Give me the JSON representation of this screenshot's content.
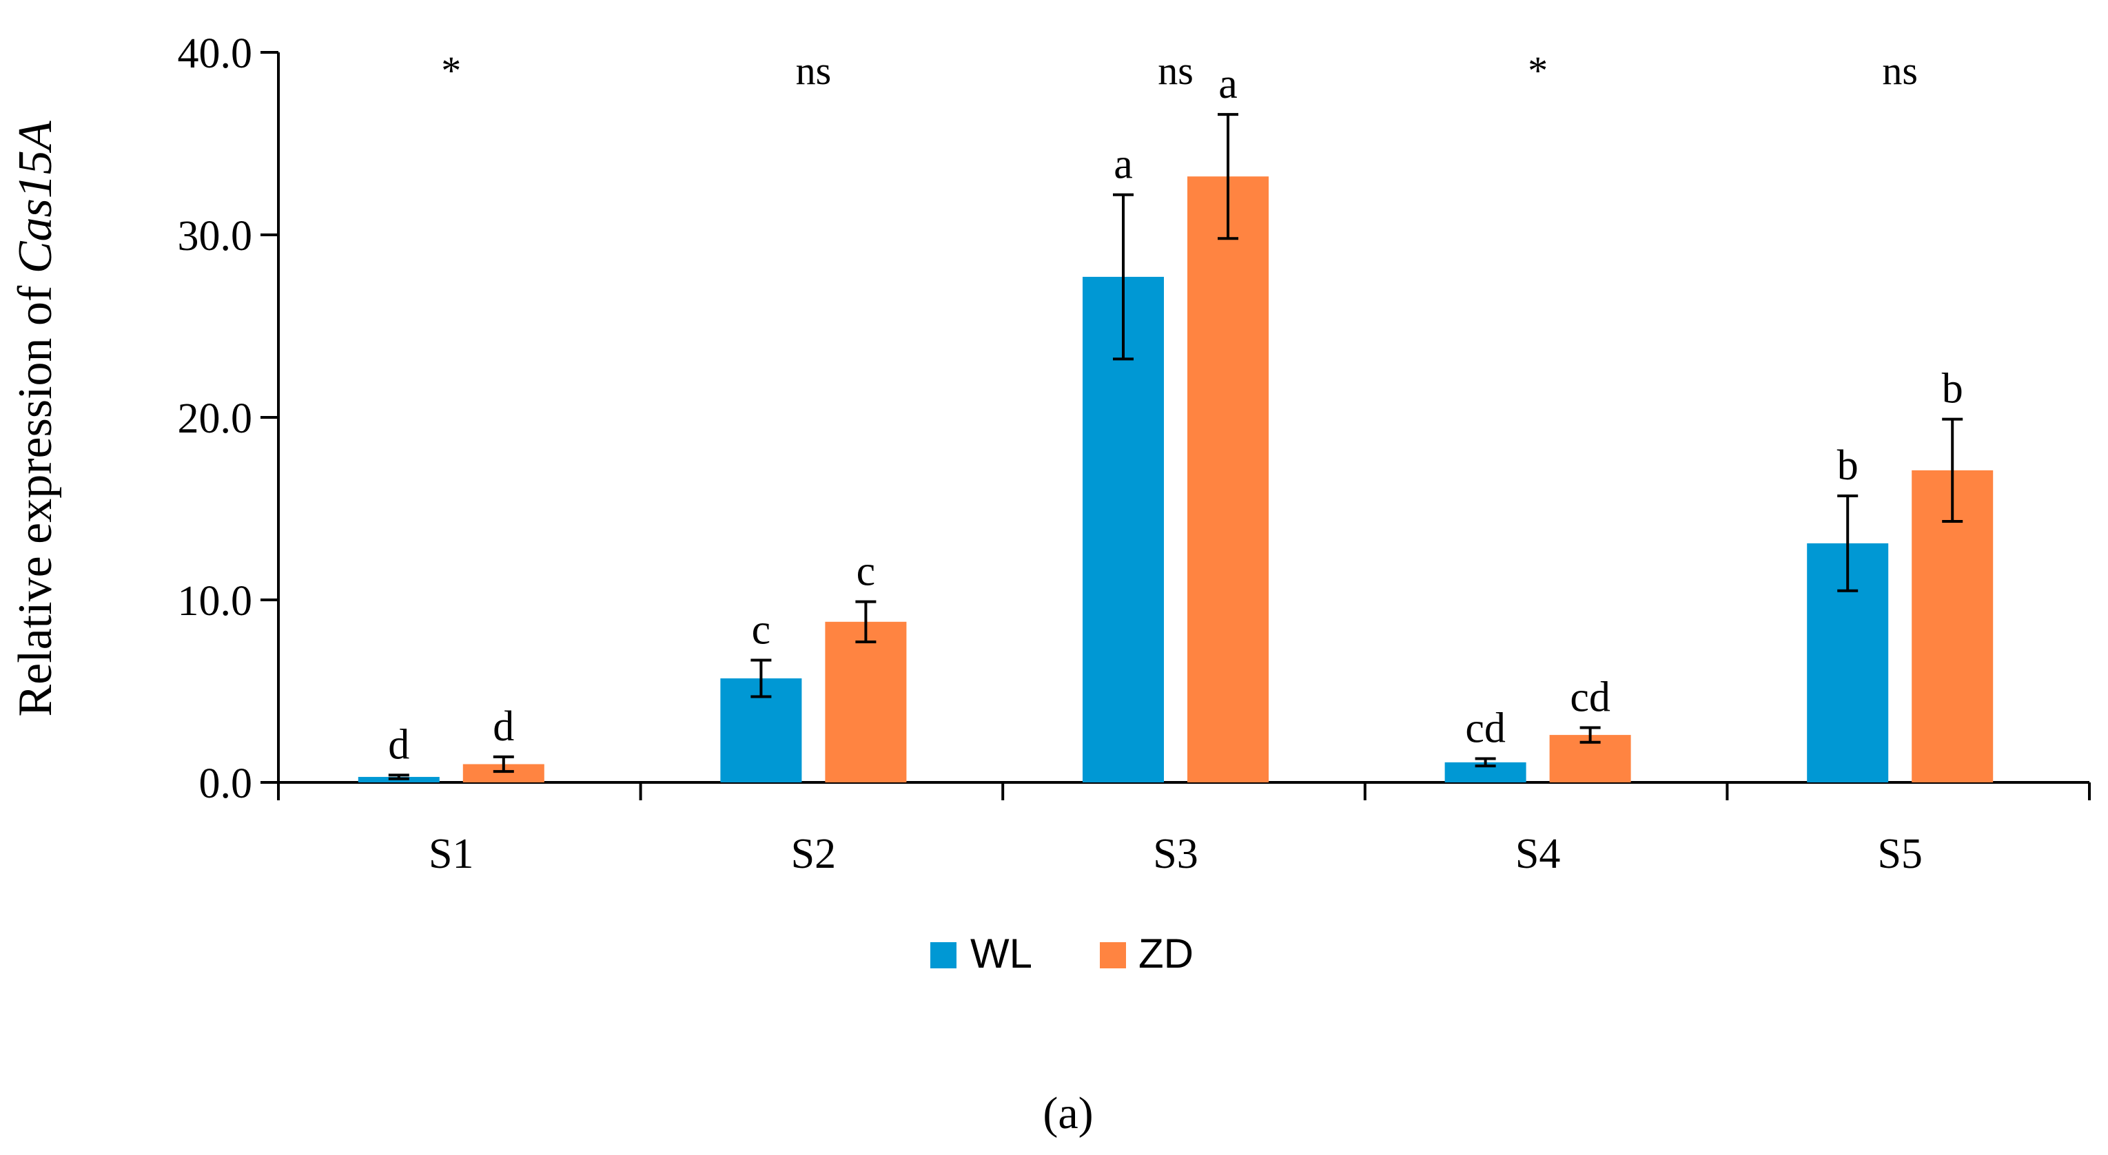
{
  "chart_data": {
    "type": "bar",
    "ylabel_prefix": "Relative expression of ",
    "ylabel_gene": "Cas15A",
    "xlabel": "",
    "ylim": [
      0,
      40
    ],
    "yticks": [
      0,
      10,
      20,
      30,
      40
    ],
    "ytick_labels": [
      "0.0",
      "10.0",
      "20.0",
      "30.0",
      "40.0"
    ],
    "categories": [
      "S1",
      "S2",
      "S3",
      "S4",
      "S5"
    ],
    "significance": [
      "*",
      "ns",
      "ns",
      "*",
      "ns"
    ],
    "series": [
      {
        "name": "WL",
        "color": "#0098D4",
        "values": [
          0.3,
          5.7,
          27.7,
          1.1,
          13.1
        ],
        "errors": [
          0.1,
          1.0,
          4.5,
          0.2,
          2.6
        ],
        "letters": [
          "d",
          "c",
          "a",
          "cd",
          "b"
        ]
      },
      {
        "name": "ZD",
        "color": "#FF8441",
        "values": [
          1.0,
          8.8,
          33.2,
          2.6,
          17.1
        ],
        "errors": [
          0.4,
          1.1,
          3.4,
          0.4,
          2.8
        ],
        "letters": [
          "d",
          "c",
          "a",
          "cd",
          "b"
        ]
      }
    ],
    "legend_position": "bottom-center",
    "panel_label": "(a)"
  }
}
